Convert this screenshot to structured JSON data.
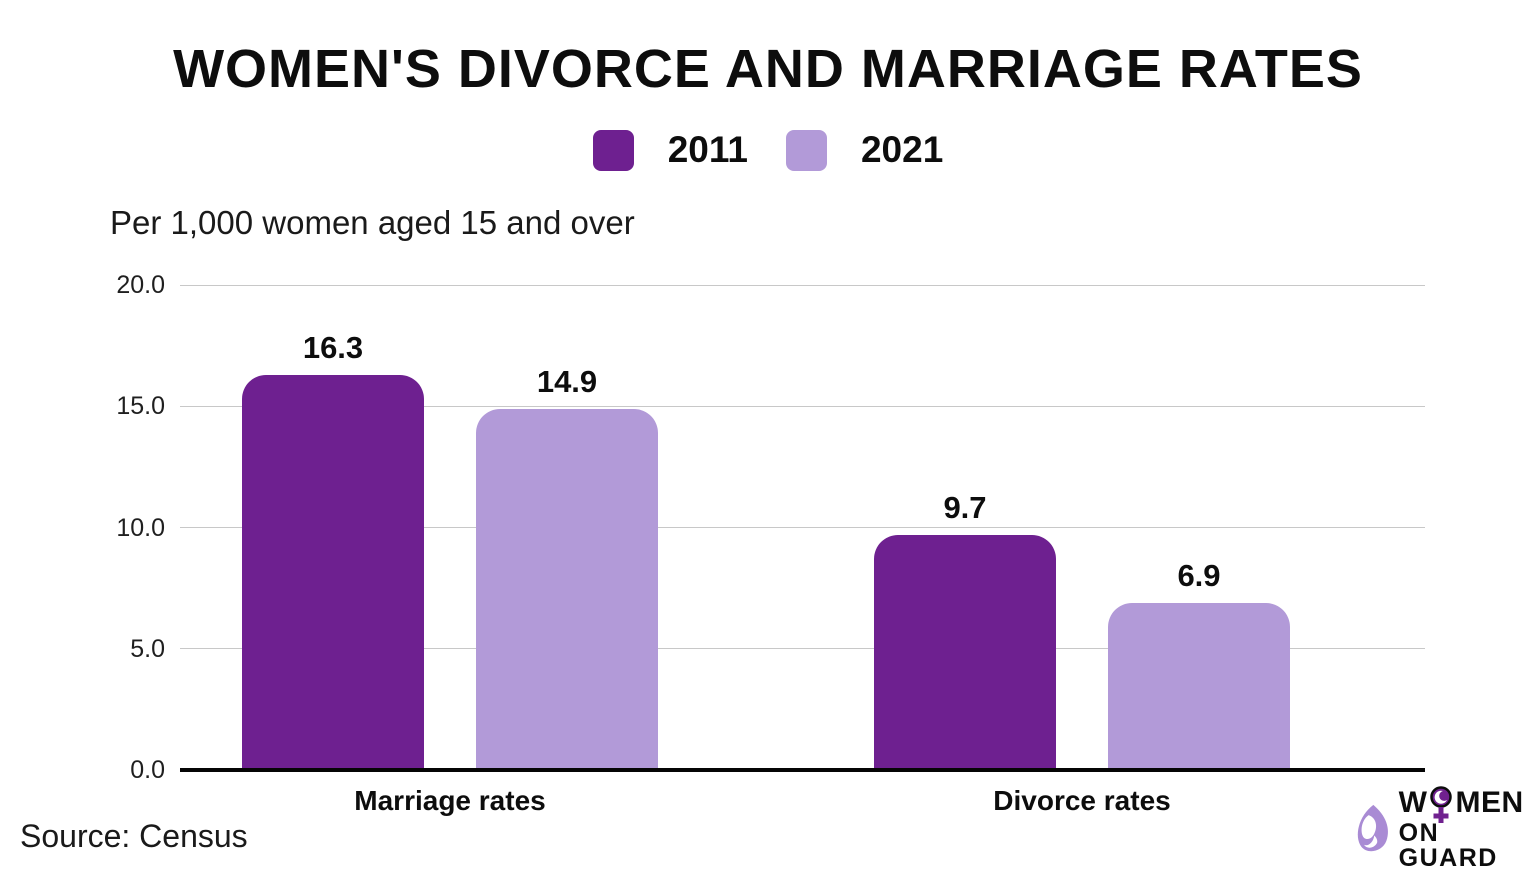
{
  "header": {
    "title": "WOMEN'S DIVORCE AND MARRIAGE RATES"
  },
  "legend": {
    "items": [
      {
        "label": "2011",
        "color": "#6E2090"
      },
      {
        "label": "2021",
        "color": "#B29AD8"
      }
    ]
  },
  "subtitle": "Per 1,000 women aged 15 and over",
  "chart_data": {
    "type": "bar",
    "title": "WOMEN'S DIVORCE AND MARRIAGE RATES",
    "subtitle": "Per 1,000 women aged 15 and over",
    "categories": [
      "Marriage rates",
      "Divorce rates"
    ],
    "series": [
      {
        "name": "2011",
        "color": "#6E2090",
        "values": [
          16.3,
          9.7
        ]
      },
      {
        "name": "2021",
        "color": "#B29AD8",
        "values": [
          14.9,
          6.9
        ]
      }
    ],
    "value_labels": [
      [
        "16.3",
        "9.7"
      ],
      [
        "14.9",
        "6.9"
      ]
    ],
    "ylim": [
      0,
      20
    ],
    "yticks": [
      0,
      5,
      10,
      15,
      20
    ],
    "ytick_labels": [
      "0.0",
      "5.0",
      "10.0",
      "15.0",
      "20.0"
    ],
    "grid": true,
    "legend_position": "top"
  },
  "footer": {
    "source": "Source: Census"
  },
  "logo": {
    "line1_pre": "W",
    "line1_post": "MEN",
    "line2": "ON GUARD",
    "accent": "#70218F",
    "mark_color": "#A98BD4"
  }
}
